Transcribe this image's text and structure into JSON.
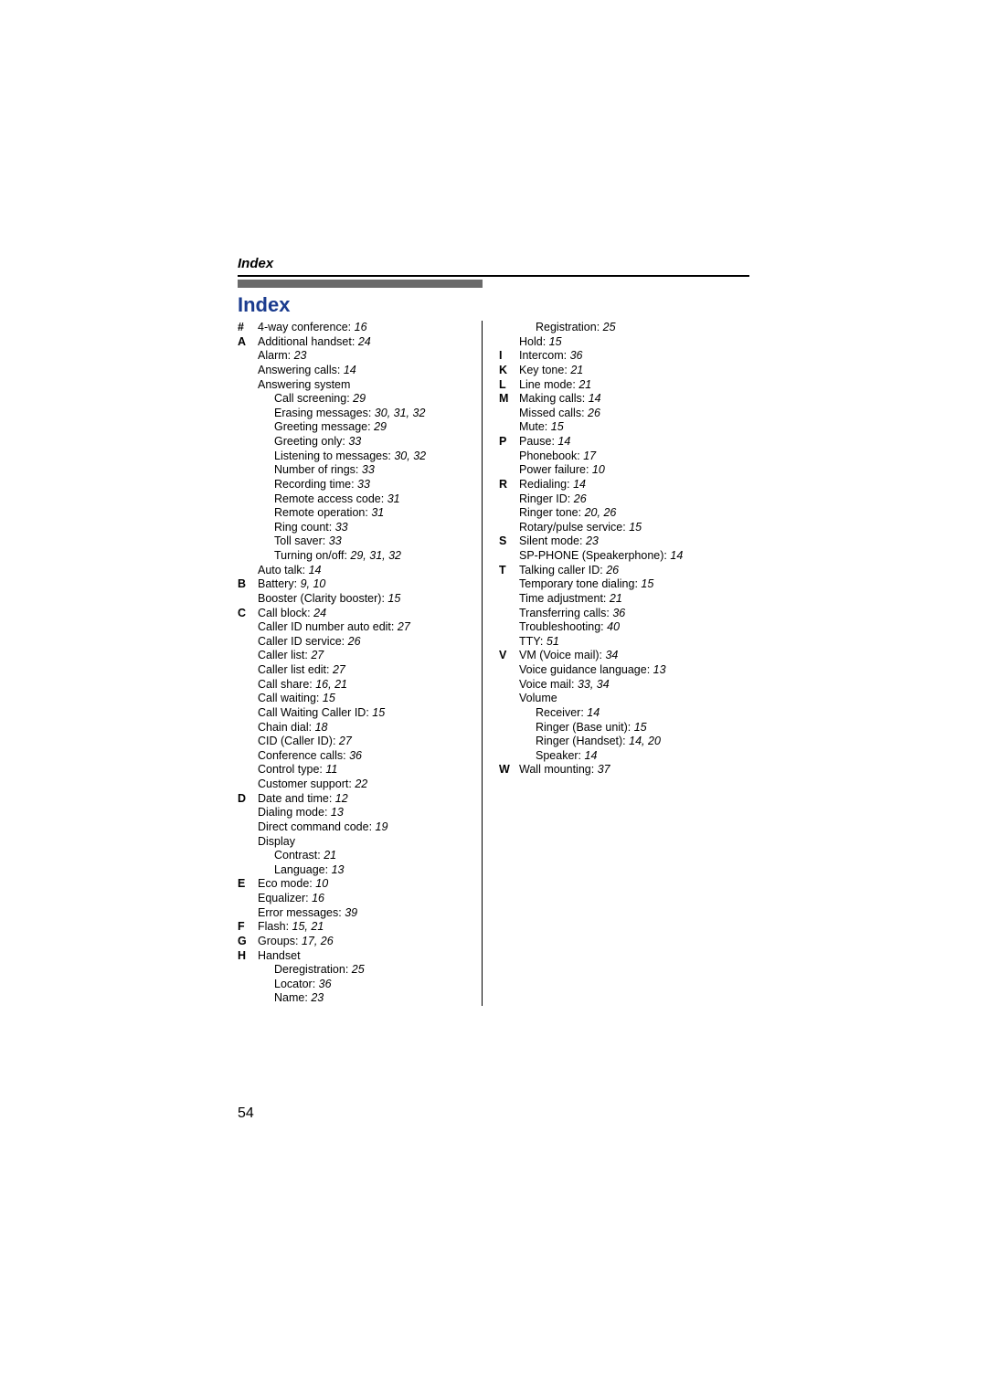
{
  "header_label": "Index",
  "main_title": "Index",
  "page_number": "54",
  "columns": [
    [
      {
        "letter": "#",
        "lines": [
          {
            "t": "4-way conference:",
            "p": "16"
          }
        ]
      },
      {
        "letter": "A",
        "lines": [
          {
            "t": "Additional handset:",
            "p": "24"
          },
          {
            "t": "Alarm:",
            "p": "23"
          },
          {
            "t": "Answering calls:",
            "p": "14"
          },
          {
            "t": "Answering system"
          },
          {
            "t": "Call screening:",
            "p": "29",
            "i": 1
          },
          {
            "t": "Erasing messages:",
            "p": "30, 31, 32",
            "i": 1
          },
          {
            "t": "Greeting message:",
            "p": "29",
            "i": 1
          },
          {
            "t": "Greeting only:",
            "p": "33",
            "i": 1
          },
          {
            "t": "Listening to messages:",
            "p": "30, 32",
            "i": 1
          },
          {
            "t": "Number of rings:",
            "p": "33",
            "i": 1
          },
          {
            "t": "Recording time:",
            "p": "33",
            "i": 1
          },
          {
            "t": "Remote access code:",
            "p": "31",
            "i": 1
          },
          {
            "t": "Remote operation:",
            "p": "31",
            "i": 1
          },
          {
            "t": "Ring count:",
            "p": "33",
            "i": 1
          },
          {
            "t": "Toll saver:",
            "p": "33",
            "i": 1
          },
          {
            "t": "Turning on/off:",
            "p": "29, 31, 32",
            "i": 1
          },
          {
            "t": "Auto talk:",
            "p": "14"
          }
        ]
      },
      {
        "letter": "B",
        "lines": [
          {
            "t": "Battery:",
            "p": "9, 10"
          },
          {
            "t": "Booster (Clarity booster):",
            "p": "15"
          }
        ]
      },
      {
        "letter": "C",
        "lines": [
          {
            "t": "Call block:",
            "p": "24"
          },
          {
            "t": "Caller ID number auto edit:",
            "p": "27"
          },
          {
            "t": "Caller ID service:",
            "p": "26"
          },
          {
            "t": "Caller list:",
            "p": "27"
          },
          {
            "t": "Caller list edit:",
            "p": "27"
          },
          {
            "t": "Call share:",
            "p": "16, 21"
          },
          {
            "t": "Call waiting:",
            "p": "15"
          },
          {
            "t": "Call Waiting Caller ID:",
            "p": "15"
          },
          {
            "t": "Chain dial:",
            "p": "18"
          },
          {
            "t": "CID (Caller ID):",
            "p": "27"
          },
          {
            "t": "Conference calls:",
            "p": "36"
          },
          {
            "t": "Control type:",
            "p": "11"
          },
          {
            "t": "Customer support:",
            "p": "22"
          }
        ]
      },
      {
        "letter": "D",
        "lines": [
          {
            "t": "Date and time:",
            "p": "12"
          },
          {
            "t": "Dialing mode:",
            "p": "13"
          },
          {
            "t": "Direct command code:",
            "p": "19"
          },
          {
            "t": "Display"
          },
          {
            "t": "Contrast:",
            "p": "21",
            "i": 1
          },
          {
            "t": "Language:",
            "p": "13",
            "i": 1
          }
        ]
      },
      {
        "letter": "E",
        "lines": [
          {
            "t": "Eco mode:",
            "p": "10"
          },
          {
            "t": "Equalizer:",
            "p": "16"
          },
          {
            "t": "Error messages:",
            "p": "39"
          }
        ]
      },
      {
        "letter": "F",
        "lines": [
          {
            "t": "Flash:",
            "p": "15, 21"
          }
        ]
      },
      {
        "letter": "G",
        "lines": [
          {
            "t": "Groups:",
            "p": "17, 26"
          }
        ]
      },
      {
        "letter": "H",
        "lines": [
          {
            "t": "Handset"
          },
          {
            "t": "Deregistration:",
            "p": "25",
            "i": 1
          },
          {
            "t": "Locator:",
            "p": "36",
            "i": 1
          },
          {
            "t": "Name:",
            "p": "23",
            "i": 1
          }
        ]
      }
    ],
    [
      {
        "letter": "",
        "lines": [
          {
            "t": "Registration:",
            "p": "25",
            "i": 1
          },
          {
            "t": "Hold:",
            "p": "15"
          }
        ]
      },
      {
        "letter": "I",
        "lines": [
          {
            "t": "Intercom:",
            "p": "36"
          }
        ]
      },
      {
        "letter": "K",
        "lines": [
          {
            "t": "Key tone:",
            "p": "21"
          }
        ]
      },
      {
        "letter": "L",
        "lines": [
          {
            "t": "Line mode:",
            "p": "21"
          }
        ]
      },
      {
        "letter": "M",
        "lines": [
          {
            "t": "Making calls:",
            "p": "14"
          },
          {
            "t": "Missed calls:",
            "p": "26"
          },
          {
            "t": "Mute:",
            "p": "15"
          }
        ]
      },
      {
        "letter": "P",
        "lines": [
          {
            "t": "Pause:",
            "p": "14"
          },
          {
            "t": "Phonebook:",
            "p": "17"
          },
          {
            "t": "Power failure:",
            "p": "10"
          }
        ]
      },
      {
        "letter": "R",
        "lines": [
          {
            "t": "Redialing:",
            "p": "14"
          },
          {
            "t": "Ringer ID:",
            "p": "26"
          },
          {
            "t": "Ringer tone:",
            "p": "20, 26"
          },
          {
            "t": "Rotary/pulse service:",
            "p": "15"
          }
        ]
      },
      {
        "letter": "S",
        "lines": [
          {
            "t": "Silent mode:",
            "p": "23"
          },
          {
            "t": "SP-PHONE (Speakerphone):",
            "p": "14"
          }
        ]
      },
      {
        "letter": "T",
        "lines": [
          {
            "t": "Talking caller ID:",
            "p": "26"
          },
          {
            "t": "Temporary tone dialing:",
            "p": "15"
          },
          {
            "t": "Time adjustment:",
            "p": "21"
          },
          {
            "t": "Transferring calls:",
            "p": "36"
          },
          {
            "t": "Troubleshooting:",
            "p": "40"
          },
          {
            "t": "TTY:",
            "p": "51"
          }
        ]
      },
      {
        "letter": "V",
        "lines": [
          {
            "t": "VM (Voice mail):",
            "p": "34"
          },
          {
            "t": "Voice guidance language:",
            "p": "13"
          },
          {
            "t": "Voice mail:",
            "p": "33, 34"
          },
          {
            "t": "Volume"
          },
          {
            "t": "Receiver:",
            "p": "14",
            "i": 1
          },
          {
            "t": "Ringer (Base unit):",
            "p": "15",
            "i": 1
          },
          {
            "t": "Ringer (Handset):",
            "p": "14, 20",
            "i": 1
          },
          {
            "t": "Speaker:",
            "p": "14",
            "i": 1
          }
        ]
      },
      {
        "letter": "W",
        "lines": [
          {
            "t": "Wall mounting:",
            "p": "37"
          }
        ]
      }
    ]
  ]
}
